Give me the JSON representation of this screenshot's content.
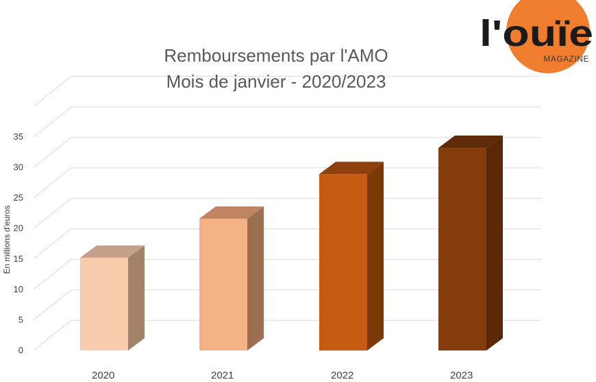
{
  "logo": {
    "brand": "l'ouïe",
    "subtitle": "MAGAZINE",
    "brand_color": "#1a1a1a",
    "circle_color": "#F07D2E"
  },
  "chart_data": {
    "type": "bar",
    "title_line1": "Remboursements par l'AMO",
    "title_line2": "Mois de janvier - 2020/2023",
    "xlabel": "",
    "ylabel": "En millions d'euros",
    "categories": [
      "2020",
      "2021",
      "2022",
      "2023"
    ],
    "values": [
      15.2,
      21.6,
      28.9,
      33.2
    ],
    "ylim": [
      0,
      35
    ],
    "yticks": [
      0,
      5,
      10,
      15,
      20,
      25,
      30,
      35
    ],
    "grid": true,
    "bar_colors": [
      {
        "front": "#F8CBAD",
        "top": "#C4A088",
        "side": "#A3826A"
      },
      {
        "front": "#F4B183",
        "top": "#C08462",
        "side": "#9C6F53"
      },
      {
        "front": "#C55A11",
        "top": "#8E3F0B",
        "side": "#7D3809"
      },
      {
        "front": "#843C0C",
        "top": "#5E2A08",
        "side": "#5A2807"
      }
    ]
  }
}
